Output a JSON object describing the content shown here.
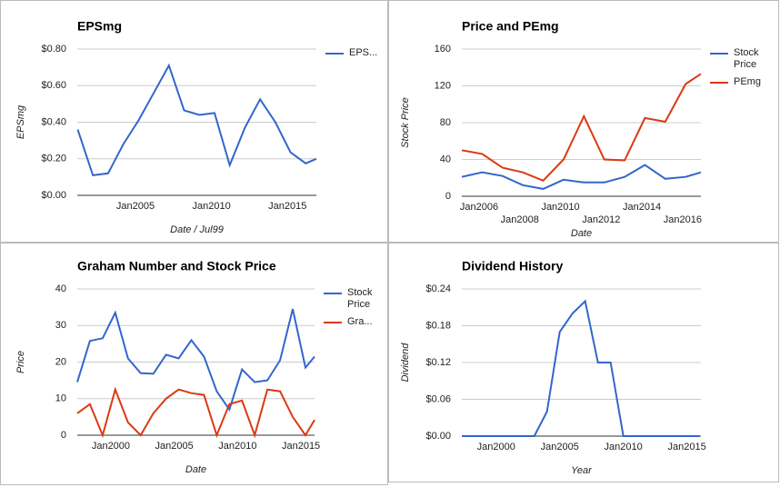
{
  "chart_data": [
    {
      "type": "line",
      "title": "EPSmg",
      "x_label": "Date / Jul99",
      "y_label": "EPSmg",
      "x": [
        2001.2,
        2002.2,
        2003.2,
        2004.2,
        2005.2,
        2006.2,
        2007.2,
        2008.2,
        2009.2,
        2010.2,
        2011.2,
        2012.2,
        2013.2,
        2014.2,
        2015.2,
        2016.2,
        2016.9
      ],
      "series": [
        {
          "name": "EPS...",
          "color": "#3366cc",
          "values": [
            0.36,
            0.11,
            0.12,
            0.28,
            0.41,
            0.56,
            0.71,
            0.465,
            0.44,
            0.45,
            0.165,
            0.37,
            0.525,
            0.4,
            0.235,
            0.175,
            0.2
          ]
        }
      ],
      "xlim": [
        2001.17,
        2016.9
      ],
      "xticks": [
        {
          "value": 2005,
          "label": "Jan2005"
        },
        {
          "value": 2010,
          "label": "Jan2010"
        },
        {
          "value": 2015,
          "label": "Jan2015"
        }
      ],
      "ylim": [
        0,
        0.8
      ],
      "yticks": [
        {
          "value": 0,
          "label": "$0.00"
        },
        {
          "value": 0.2,
          "label": "$0.20"
        },
        {
          "value": 0.4,
          "label": "$0.40"
        },
        {
          "value": 0.6,
          "label": "$0.60"
        },
        {
          "value": 0.8,
          "label": "$0.80"
        }
      ],
      "grid": true,
      "legend": "right"
    },
    {
      "type": "line",
      "title": "Price and PEmg",
      "x_label": "Date",
      "y_label": "Stock Price",
      "x": [
        2005.15,
        2006.15,
        2007.15,
        2008.15,
        2009.15,
        2010.15,
        2011.15,
        2012.15,
        2013.15,
        2014.15,
        2015.15,
        2016.15,
        2016.9
      ],
      "series": [
        {
          "name": "Stock Price",
          "color": "#3366cc",
          "values": [
            21,
            26,
            22,
            12,
            8,
            18,
            15,
            15,
            21,
            34,
            19,
            21,
            26
          ]
        },
        {
          "name": "PEmg",
          "color": "#dc3912",
          "values": [
            50,
            46,
            31,
            26,
            17,
            40,
            87,
            40,
            39,
            85,
            81,
            122,
            133
          ]
        }
      ],
      "xlim": [
        2005.15,
        2016.9
      ],
      "xticks": [
        {
          "value": 2006,
          "label": "Jan2006"
        },
        {
          "value": 2008,
          "label": "Jan2008"
        },
        {
          "value": 2010,
          "label": "Jan2010"
        },
        {
          "value": 2012,
          "label": "Jan2012"
        },
        {
          "value": 2014,
          "label": "Jan2014"
        },
        {
          "value": 2016,
          "label": "Jan2016"
        }
      ],
      "ylim": [
        0,
        160
      ],
      "yticks": [
        0,
        40,
        80,
        120,
        160
      ],
      "grid": true,
      "legend": "right"
    },
    {
      "type": "line",
      "title": "Graham Number and Stock Price",
      "x_label": "Date",
      "y_label": "Price",
      "x": [
        1997.35,
        1998.35,
        1999.35,
        2000.35,
        2001.35,
        2002.35,
        2003.35,
        2004.35,
        2005.35,
        2006.35,
        2007.35,
        2008.35,
        2009.35,
        2010.35,
        2011.35,
        2012.35,
        2013.35,
        2014.35,
        2015.35,
        2016.07
      ],
      "series": [
        {
          "name": "Stock Price",
          "color": "#3366cc",
          "values": [
            14.5,
            25.8,
            26.5,
            33.5,
            21,
            17,
            16.8,
            22,
            21,
            26,
            21.5,
            12,
            7,
            18,
            14.5,
            15,
            20.5,
            34.5,
            18.5,
            21.5
          ]
        },
        {
          "name": "Gra...",
          "color": "#dc3912",
          "values": [
            6,
            8.5,
            0,
            12.5,
            3.5,
            0,
            6,
            10,
            12.5,
            11.5,
            11,
            0,
            8.5,
            9.5,
            0,
            12.5,
            12,
            5,
            0,
            4.2
          ]
        }
      ],
      "xlim": [
        1997.35,
        2016.07
      ],
      "xticks": [
        {
          "value": 2000,
          "label": "Jan2000"
        },
        {
          "value": 2005,
          "label": "Jan2005"
        },
        {
          "value": 2010,
          "label": "Jan2010"
        },
        {
          "value": 2015,
          "label": "Jan2015"
        }
      ],
      "ylim": [
        0,
        40
      ],
      "yticks": [
        0,
        10,
        20,
        30,
        40
      ],
      "grid": true,
      "legend": "right"
    },
    {
      "type": "line",
      "title": "Dividend History",
      "x_label": "Year",
      "y_label": "Dividend",
      "x": [
        1997.3,
        1998,
        1999,
        2000,
        2001,
        2002,
        2003,
        2004,
        2005,
        2006,
        2007,
        2008,
        2009,
        2010,
        2011,
        2012,
        2013,
        2014,
        2015,
        2016
      ],
      "series": [
        {
          "color": "#3366cc",
          "values": [
            0,
            0,
            0,
            0,
            0,
            0,
            0,
            0.04,
            0.17,
            0.2,
            0.22,
            0.12,
            0.12,
            0,
            0,
            0,
            0,
            0,
            0,
            0
          ]
        }
      ],
      "xlim": [
        1997.3,
        2016.1
      ],
      "xticks": [
        {
          "value": 2000,
          "label": "Jan2000"
        },
        {
          "value": 2005,
          "label": "Jan2005"
        },
        {
          "value": 2010,
          "label": "Jan2010"
        },
        {
          "value": 2015,
          "label": "Jan2015"
        }
      ],
      "ylim": [
        0,
        0.24
      ],
      "yticks": [
        {
          "value": 0,
          "label": "$0.00"
        },
        {
          "value": 0.06,
          "label": "$0.06"
        },
        {
          "value": 0.12,
          "label": "$0.12"
        },
        {
          "value": 0.18,
          "label": "$0.18"
        },
        {
          "value": 0.24,
          "label": "$0.24"
        }
      ],
      "grid": true
    }
  ]
}
